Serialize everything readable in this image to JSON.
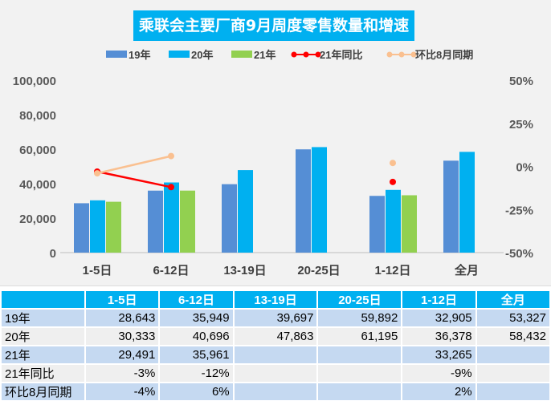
{
  "chart_data": {
    "type": "bar",
    "title": "乘联会主要厂商9月周度零售数量和增速",
    "categories": [
      "1-5日",
      "6-12日",
      "13-19日",
      "20-25日",
      "1-12日",
      "全月"
    ],
    "series": [
      {
        "name": "19年",
        "kind": "bar",
        "color": "#558ed5",
        "values": [
          28643,
          35949,
          39697,
          59892,
          32905,
          53327
        ]
      },
      {
        "name": "20年",
        "kind": "bar",
        "color": "#00b0f0",
        "values": [
          30333,
          40696,
          47863,
          61195,
          36378,
          58432
        ]
      },
      {
        "name": "21年",
        "kind": "bar",
        "color": "#92d050",
        "values": [
          29491,
          35961,
          null,
          null,
          33265,
          null
        ]
      },
      {
        "name": "21年同比",
        "kind": "line",
        "axis": "right",
        "color": "#ff0000",
        "values": [
          -3,
          -12,
          null,
          null,
          -9,
          null
        ]
      },
      {
        "name": "环比8月同期",
        "kind": "line",
        "axis": "right",
        "color": "#fac090",
        "values": [
          -4,
          6,
          null,
          null,
          2,
          null
        ]
      }
    ],
    "ylim": [
      0,
      100000
    ],
    "yticks": [
      "100,000",
      "80,000",
      "60,000",
      "40,000",
      "20,000",
      "0"
    ],
    "y2lim": [
      -50,
      50
    ],
    "y2ticks": [
      "50%",
      "25%",
      "0%",
      "-25%",
      "-50%"
    ],
    "legend": "top",
    "grid": false
  },
  "table": {
    "headers": [
      "",
      "1-5日",
      "6-12日",
      "13-19日",
      "20-25日",
      "1-12日",
      "全月"
    ],
    "rows": [
      [
        "19年",
        "28,643",
        "35,949",
        "39,697",
        "59,892",
        "32,905",
        "53,327"
      ],
      [
        "20年",
        "30,333",
        "40,696",
        "47,863",
        "61,195",
        "36,378",
        "58,432"
      ],
      [
        "21年",
        "29,491",
        "35,961",
        "",
        "",
        "33,265",
        ""
      ],
      [
        "21年同比",
        "-3%",
        "-12%",
        "",
        "",
        "-9%",
        ""
      ],
      [
        "环比8月同期",
        "-4%",
        "6%",
        "",
        "",
        "2%",
        ""
      ]
    ]
  }
}
